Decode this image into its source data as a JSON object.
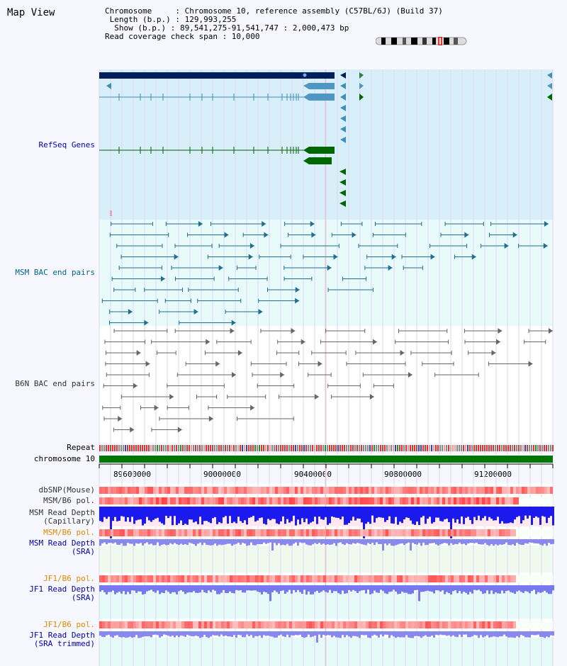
{
  "title": "Map View",
  "info": {
    "chromosome": "Chromosome     : Chromosome 10, reference assembly (C57BL/6J) (Build 37)",
    "length": " Length (b.p.) : 129,993,255",
    "show": "  Show (b.p.) : 89,541,275-91,541,747 : 2,000,473 bp",
    "coverage": "Read coverage check span : 10,000"
  },
  "tracks": {
    "refseq": "RefSeq Genes",
    "msm_bac": "MSM BAC end pairs",
    "b6n_bac": "B6N BAC end pairs",
    "repeat": "Repeat",
    "chromosome": "chromosome 10",
    "dbsnp": "dbSNP(Mouse)",
    "msm_b6_pol": "MSM/B6 pol.",
    "msm_read_depth": "MSM Read Depth",
    "capillary": "(Capillary)",
    "msm_b6_pol2": "MSM/B6 pol.",
    "msm_read_depth2": "MSM Read Depth",
    "sra": "(SRA)",
    "jf1_b6_pol": "JF1/B6 pol.",
    "jf1_read_depth": "JF1 Read Depth",
    "sra2": "(SRA)",
    "jf1_b6_pol2": "JF1/B6 pol.",
    "jf1_read_depth2": "JF1 Read Depth",
    "sra_trimmed": "(SRA trimmed)"
  },
  "axis_ticks": [
    "89600000",
    "90000000",
    "90400000",
    "90800000",
    "91200000"
  ],
  "colors": {
    "refseq_bg": "#d8eef8",
    "bac_bg": "#e8fafa",
    "gene_navy": "#001f5a",
    "gene_blue": "#3f8fb8",
    "gene_green": "#006600",
    "msm_pair": "#1f6f8f",
    "b6n_pair": "#555555",
    "chrom_bar": "#007700"
  }
}
